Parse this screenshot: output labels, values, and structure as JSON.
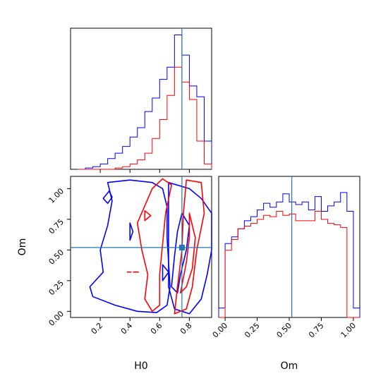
{
  "chart_data": [
    {
      "panel": "H0 marginal",
      "type": "histogram",
      "xlim": [
        0.0,
        0.95
      ],
      "ylim": [
        0,
        1.05
      ],
      "bin_edges": [
        0.05,
        0.1,
        0.15,
        0.2,
        0.25,
        0.3,
        0.35,
        0.4,
        0.45,
        0.5,
        0.55,
        0.6,
        0.65,
        0.7,
        0.75,
        0.8,
        0.85,
        0.9,
        0.95
      ],
      "series": [
        {
          "color": "#0000ff",
          "values": [
            0.0,
            0.01,
            0.02,
            0.04,
            0.08,
            0.12,
            0.17,
            0.24,
            0.31,
            0.43,
            0.53,
            0.67,
            0.76,
            1.0,
            0.85,
            0.62,
            0.54,
            0.21
          ]
        },
        {
          "color": "#ff0000",
          "values": [
            0.0,
            0.0,
            0.0,
            0.0,
            0.0,
            0.01,
            0.02,
            0.04,
            0.07,
            0.12,
            0.23,
            0.37,
            0.55,
            0.76,
            0.65,
            0.52,
            0.21,
            0.04
          ]
        }
      ],
      "truth_line": {
        "color": "#1f77b4",
        "x": 0.75
      }
    },
    {
      "panel": "H0 vs Om",
      "type": "contour",
      "xlabel": "H0",
      "ylabel": "Om",
      "xlim": [
        0.0,
        0.95
      ],
      "ylim": [
        -0.05,
        1.1
      ],
      "x_ticks": [
        "0.2",
        "0.4",
        "0.6",
        "0.8"
      ],
      "y_ticks": [
        "0.00",
        "0.25",
        "0.50",
        "0.75",
        "1.00"
      ],
      "series": [
        {
          "color": "#0000ff",
          "contours": [
            [
              [
                0.25,
                1.05
              ],
              [
                0.4,
                1.07
              ],
              [
                0.55,
                1.05
              ],
              [
                0.62,
                1.0
              ],
              [
                0.65,
                0.85
              ],
              [
                0.65,
                0.6
              ],
              [
                0.66,
                0.4
              ],
              [
                0.67,
                0.2
              ],
              [
                0.65,
                0.05
              ],
              [
                0.58,
                -0.01
              ],
              [
                0.45,
                0.0
              ],
              [
                0.3,
                0.05
              ],
              [
                0.15,
                0.12
              ],
              [
                0.13,
                0.2
              ],
              [
                0.22,
                0.32
              ],
              [
                0.2,
                0.5
              ],
              [
                0.25,
                0.7
              ],
              [
                0.28,
                0.9
              ]
            ],
            [
              [
                0.25,
                0.88
              ],
              [
                0.28,
                0.93
              ],
              [
                0.26,
                0.98
              ],
              [
                0.22,
                0.92
              ]
            ],
            [
              [
                0.4,
                0.72
              ],
              [
                0.42,
                0.65
              ],
              [
                0.4,
                0.58
              ]
            ],
            [
              [
                0.66,
                1.05
              ],
              [
                0.8,
                1.0
              ],
              [
                0.88,
                0.92
              ],
              [
                0.95,
                0.8
              ],
              [
                0.95,
                0.5
              ],
              [
                0.92,
                0.3
              ],
              [
                0.88,
                0.1
              ],
              [
                0.8,
                -0.02
              ],
              [
                0.7,
                0.02
              ],
              [
                0.66,
                0.2
              ]
            ],
            [
              [
                0.75,
                0.8
              ],
              [
                0.8,
                0.7
              ],
              [
                0.78,
                0.5
              ],
              [
                0.74,
                0.3
              ],
              [
                0.72,
                0.15
              ],
              [
                0.68,
                0.2
              ],
              [
                0.7,
                0.45
              ],
              [
                0.72,
                0.65
              ]
            ],
            [
              [
                0.62,
                0.38
              ],
              [
                0.66,
                0.32
              ],
              [
                0.62,
                0.25
              ]
            ]
          ]
        },
        {
          "color": "#ff0000",
          "contours": [
            [
              [
                0.55,
                1.0
              ],
              [
                0.62,
                1.08
              ],
              [
                0.68,
                1.03
              ],
              [
                0.64,
                0.8
              ],
              [
                0.62,
                0.55
              ],
              [
                0.6,
                0.3
              ],
              [
                0.6,
                0.05
              ],
              [
                0.55,
                0.0
              ],
              [
                0.5,
                0.1
              ],
              [
                0.52,
                0.3
              ],
              [
                0.48,
                0.5
              ],
              [
                0.45,
                0.72
              ]
            ],
            [
              [
                0.5,
                0.82
              ],
              [
                0.54,
                0.78
              ],
              [
                0.5,
                0.74
              ]
            ],
            [
              [
                0.78,
                1.07
              ],
              [
                0.88,
                1.05
              ],
              [
                0.9,
                0.8
              ],
              [
                0.85,
                0.5
              ],
              [
                0.82,
                0.2
              ],
              [
                0.78,
                0.02
              ],
              [
                0.7,
                -0.02
              ],
              [
                0.72,
                0.2
              ],
              [
                0.75,
                0.5
              ],
              [
                0.76,
                0.8
              ]
            ],
            [
              [
                0.8,
                0.8
              ],
              [
                0.84,
                0.6
              ],
              [
                0.82,
                0.35
              ],
              [
                0.78,
                0.2
              ],
              [
                0.74,
                0.15
              ],
              [
                0.78,
                0.4
              ],
              [
                0.8,
                0.6
              ]
            ],
            [
              [
                0.42,
                0.32
              ],
              [
                0.46,
                0.32
              ]
            ],
            [
              [
                0.38,
                0.32
              ],
              [
                0.41,
                0.32
              ]
            ]
          ]
        }
      ],
      "truth": {
        "color": "#1f77b4",
        "x": 0.75,
        "y": 0.52
      }
    },
    {
      "panel": "Om marginal",
      "type": "histogram",
      "xlabel": "Om",
      "xlim": [
        -0.05,
        1.05
      ],
      "ylim": [
        0,
        1.05
      ],
      "x_ticks": [
        "0.00",
        "0.25",
        "0.50",
        "0.75",
        "1.00"
      ],
      "bin_edges": [
        -0.05,
        0.0,
        0.05,
        0.1,
        0.15,
        0.2,
        0.25,
        0.3,
        0.35,
        0.4,
        0.45,
        0.5,
        0.55,
        0.6,
        0.65,
        0.7,
        0.75,
        0.8,
        0.85,
        0.9,
        0.95,
        1.0,
        1.05
      ],
      "series": [
        {
          "color": "#0000ff",
          "values": [
            0.07,
            0.55,
            0.6,
            0.66,
            0.72,
            0.75,
            0.8,
            0.85,
            0.82,
            0.86,
            0.92,
            0.86,
            0.84,
            0.86,
            0.8,
            0.9,
            0.79,
            0.83,
            0.86,
            0.93,
            0.79,
            0.07
          ]
        },
        {
          "color": "#ff0000",
          "values": [
            0.0,
            0.5,
            0.58,
            0.66,
            0.68,
            0.7,
            0.73,
            0.76,
            0.75,
            0.79,
            0.76,
            0.77,
            0.72,
            0.72,
            0.72,
            0.79,
            0.73,
            0.7,
            0.69,
            0.67,
            0.0,
            0.0
          ]
        }
      ],
      "truth_line": {
        "color": "#1f77b4",
        "x": 0.52
      }
    }
  ]
}
